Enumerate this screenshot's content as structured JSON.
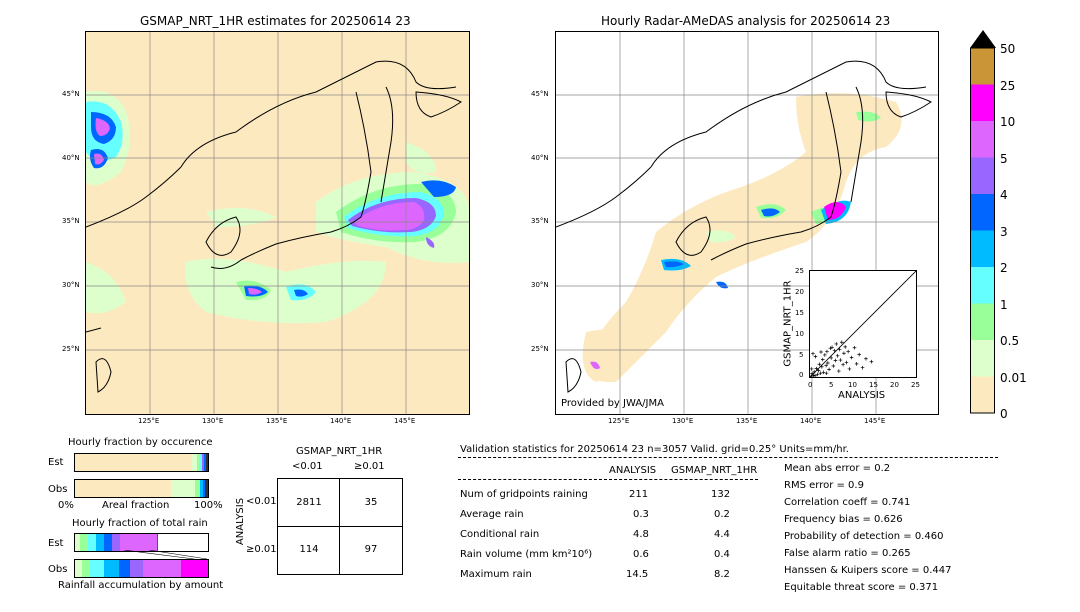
{
  "left_map": {
    "title": "GSMAP_NRT_1HR estimates for 20250614 23",
    "lat_labels": [
      "45°N",
      "40°N",
      "35°N",
      "30°N",
      "25°N"
    ],
    "lon_labels": [
      "125°E",
      "130°E",
      "135°E",
      "140°E",
      "145°E"
    ]
  },
  "right_map": {
    "title": "Hourly Radar-AMeDAS analysis for 20250614 23",
    "lat_labels": [
      "45°N",
      "40°N",
      "35°N",
      "30°N",
      "25°N"
    ],
    "lon_labels": [
      "125°E",
      "130°E",
      "135°E",
      "140°E",
      "145°E"
    ],
    "credit": "Provided by JWA/JMA"
  },
  "colorbar": {
    "labels": [
      "50",
      "25",
      "10",
      "5",
      "4",
      "3",
      "2",
      "1",
      "0.5",
      "0.01",
      "0"
    ],
    "colors": [
      "#c99536",
      "#ff00ff",
      "#dd66ff",
      "#9966ff",
      "#0066ff",
      "#00bbff",
      "#66ffff",
      "#99ff99",
      "#ddffcc",
      "#fde9c0"
    ],
    "extend_color": "#000000"
  },
  "chart_data": {
    "type": "scatter",
    "xlabel": "ANALYSIS",
    "ylabel": "GSMAP_NRT_1HR",
    "xlim": [
      0,
      25
    ],
    "ylim": [
      0,
      25
    ],
    "x_ticks": [
      "0",
      "5",
      "10",
      "15",
      "20",
      "25"
    ],
    "y_ticks": [
      "0",
      "5",
      "10",
      "15",
      "20",
      "25"
    ],
    "points": [
      [
        0.3,
        0.2
      ],
      [
        0.5,
        0.8
      ],
      [
        0.8,
        0.4
      ],
      [
        1.0,
        1.2
      ],
      [
        1.2,
        0.3
      ],
      [
        1.5,
        2.0
      ],
      [
        1.8,
        0.6
      ],
      [
        2.0,
        1.5
      ],
      [
        2.2,
        3.0
      ],
      [
        2.5,
        0.9
      ],
      [
        2.8,
        2.4
      ],
      [
        3.0,
        4.1
      ],
      [
        3.2,
        1.1
      ],
      [
        3.5,
        5.2
      ],
      [
        3.8,
        2.7
      ],
      [
        4.0,
        6.0
      ],
      [
        4.2,
        3.3
      ],
      [
        4.5,
        1.8
      ],
      [
        4.8,
        6.8
      ],
      [
        5.0,
        4.5
      ],
      [
        5.2,
        7.0
      ],
      [
        5.5,
        2.6
      ],
      [
        5.8,
        6.2
      ],
      [
        6.0,
        3.9
      ],
      [
        6.2,
        7.8
      ],
      [
        6.5,
        5.0
      ],
      [
        6.8,
        1.4
      ],
      [
        7.0,
        6.5
      ],
      [
        7.2,
        4.0
      ],
      [
        7.5,
        8.2
      ],
      [
        7.8,
        2.9
      ],
      [
        8.0,
        5.6
      ],
      [
        8.3,
        7.1
      ],
      [
        8.6,
        3.4
      ],
      [
        9.0,
        6.0
      ],
      [
        9.3,
        1.9
      ],
      [
        9.8,
        4.6
      ],
      [
        10.5,
        6.9
      ],
      [
        11.0,
        3.1
      ],
      [
        11.6,
        5.3
      ],
      [
        12.4,
        2.2
      ],
      [
        13.2,
        4.3
      ],
      [
        14.5,
        3.6
      ],
      [
        0.7,
        5.5
      ],
      [
        1.3,
        4.8
      ],
      [
        2.6,
        5.9
      ],
      [
        3.9,
        0.9
      ],
      [
        0.4,
        1.9
      ]
    ]
  },
  "occurrence_chart": {
    "title": "Hourly fraction by occurence",
    "rows": [
      "Est",
      "Obs"
    ],
    "xlabel": "Areal fraction",
    "x_left": "0%",
    "x_right": "100%",
    "est_segments": [
      {
        "frac": 0.88,
        "color": "#fde9c0"
      },
      {
        "frac": 0.04,
        "color": "#ddffcc"
      },
      {
        "frac": 0.02,
        "color": "#99ff99"
      },
      {
        "frac": 0.015,
        "color": "#66ffff"
      },
      {
        "frac": 0.015,
        "color": "#9966ff"
      },
      {
        "frac": 0.015,
        "color": "#0066ff"
      },
      {
        "frac": 0.015,
        "color": "#333333"
      }
    ],
    "obs_segments": [
      {
        "frac": 0.72,
        "color": "#fde9c0"
      },
      {
        "frac": 0.18,
        "color": "#ddffcc"
      },
      {
        "frac": 0.04,
        "color": "#99ff99"
      },
      {
        "frac": 0.02,
        "color": "#00bbff"
      },
      {
        "frac": 0.02,
        "color": "#0066ff"
      },
      {
        "frac": 0.02,
        "color": "#333333"
      }
    ]
  },
  "amount_chart": {
    "title": "Hourly fraction of total rain",
    "rows": [
      "Est",
      "Obs"
    ],
    "xlabel": "Rainfall accumulation by amount",
    "est_segments": [
      {
        "frac": 0.04,
        "color": "#ddffcc"
      },
      {
        "frac": 0.06,
        "color": "#99ff99"
      },
      {
        "frac": 0.06,
        "color": "#66ffff"
      },
      {
        "frac": 0.06,
        "color": "#00bbff"
      },
      {
        "frac": 0.06,
        "color": "#0066ff"
      },
      {
        "frac": 0.06,
        "color": "#9966ff"
      },
      {
        "frac": 0.28,
        "color": "#dd66ff"
      }
    ],
    "obs_segments": [
      {
        "frac": 0.05,
        "color": "#ddffcc"
      },
      {
        "frac": 0.06,
        "color": "#99ff99"
      },
      {
        "frac": 0.11,
        "color": "#66ffff"
      },
      {
        "frac": 0.11,
        "color": "#00bbff"
      },
      {
        "frac": 0.08,
        "color": "#0066ff"
      },
      {
        "frac": 0.1,
        "color": "#9966ff"
      },
      {
        "frac": 0.29,
        "color": "#dd66ff"
      },
      {
        "frac": 0.2,
        "color": "#ff00ff"
      }
    ]
  },
  "contingency": {
    "title": "GSMAP_NRT_1HR",
    "col_lt": "<0.01",
    "col_ge": "≥0.01",
    "row_axis": "ANALYSIS",
    "row_lt": "<0.01",
    "row_ge": "≥0.01",
    "a": "2811",
    "b": "35",
    "c": "114",
    "d": "97"
  },
  "validation": {
    "header": "Validation statistics for 20250614 23  n=3057 Valid. grid=0.25° Units=mm/hr.",
    "col_analysis": "ANALYSIS",
    "col_gsmap": "GSMAP_NRT_1HR",
    "rows": [
      {
        "label": "Num of gridpoints raining",
        "analysis": "211",
        "gsmap": "132"
      },
      {
        "label": "Average rain",
        "analysis": "0.3",
        "gsmap": "0.2"
      },
      {
        "label": "Conditional rain",
        "analysis": "4.8",
        "gsmap": "4.4"
      },
      {
        "label": "Rain volume (mm km²10⁶)",
        "analysis": "0.6",
        "gsmap": "0.4"
      },
      {
        "label": "Maximum rain",
        "analysis": "14.5",
        "gsmap": "8.2"
      }
    ],
    "scores": [
      "Mean abs error =    0.2",
      "RMS error =    0.9",
      "Correlation coeff =  0.741",
      "Frequency bias =  0.626",
      "Probability of detection =  0.460",
      "False alarm ratio =  0.265",
      "Hanssen & Kuipers score =  0.447",
      "Equitable threat score =  0.371"
    ]
  }
}
